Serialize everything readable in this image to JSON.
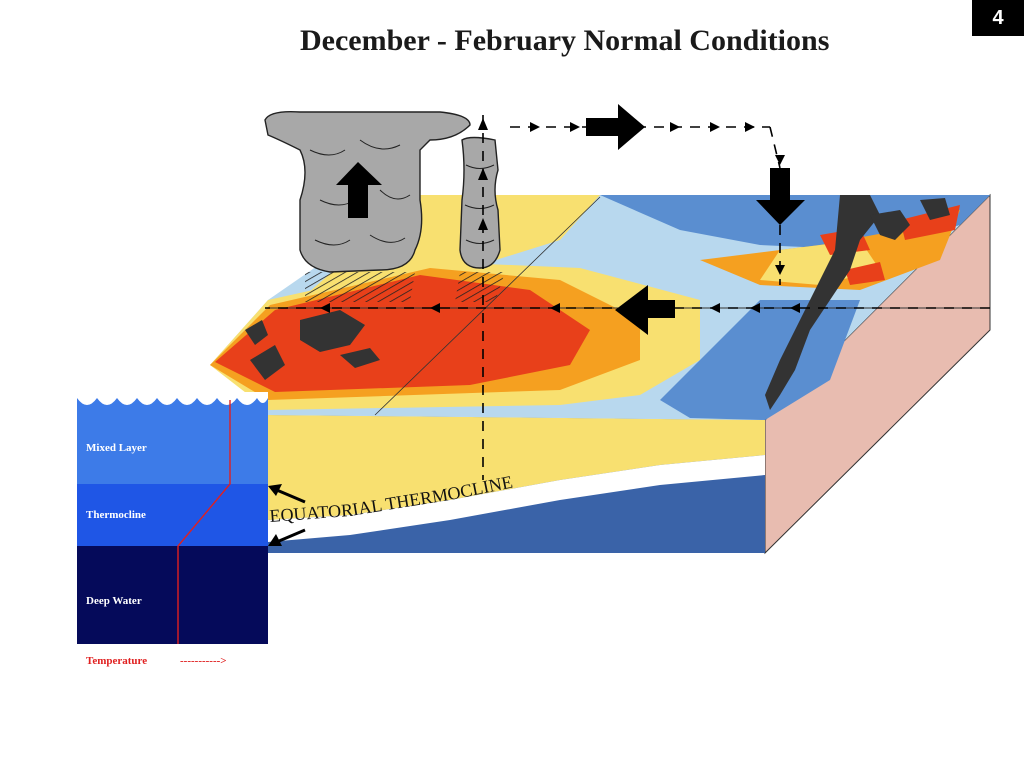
{
  "slide_number": "4",
  "title": "December - February Normal Conditions",
  "thermocline_label": "EQUATORIAL THERMOCLINE",
  "layers": {
    "mixed_layer": "Mixed Layer",
    "thermocline": "Thermocline",
    "deep_water": "Deep Water"
  },
  "temperature": {
    "label": "Temperature",
    "arrow": "----------->"
  },
  "colors": {
    "warm_red": "#e8401a",
    "orange": "#f5a020",
    "yellow": "#f8e070",
    "light_blue": "#b8d8ee",
    "blue": "#5a8ed0",
    "mixed_layer": "#3d7be8",
    "thermocline": "#1f56e6",
    "deep_water": "#050a5a",
    "box_side": "#e8bcb0",
    "cloud": "#a8a8a8"
  }
}
